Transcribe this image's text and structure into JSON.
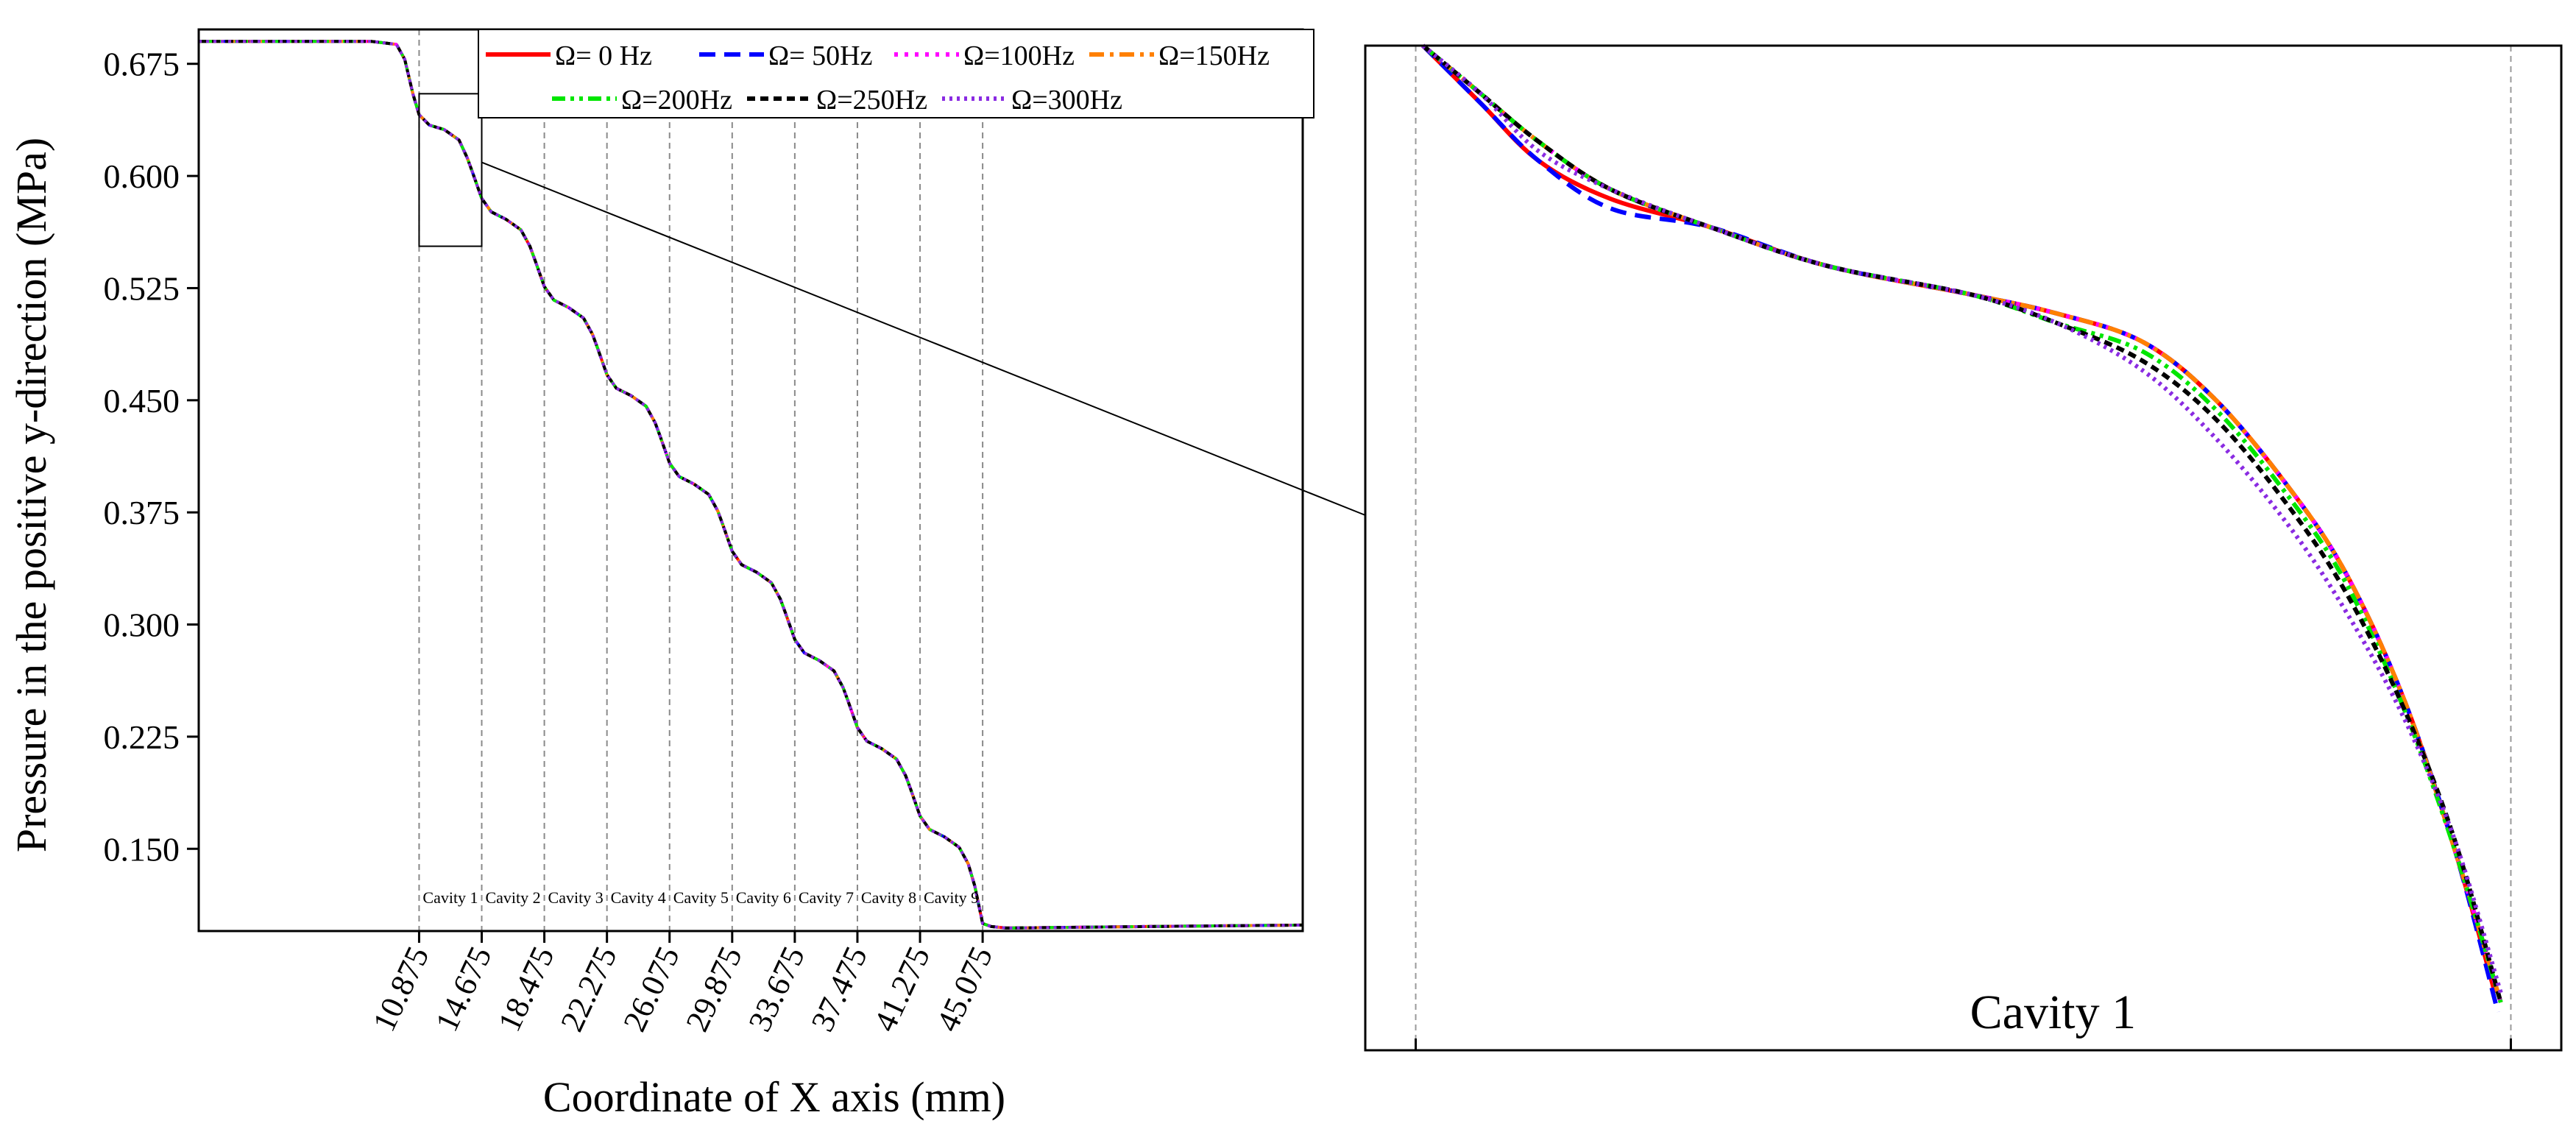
{
  "chart_data": [
    {
      "type": "line",
      "title": "",
      "xlabel": "Coordinate of X axis (mm)",
      "ylabel": "Pressure in the positive y-direction (MPa)",
      "xlim": [
        -2.5,
        64.5
      ],
      "ylim": [
        0.095,
        0.698
      ],
      "yticks": [
        0.15,
        0.225,
        0.3,
        0.375,
        0.45,
        0.525,
        0.6,
        0.675
      ],
      "ytick_labels": [
        "0.150",
        "0.225",
        "0.300",
        "0.375",
        "0.450",
        "0.525",
        "0.600",
        "0.675"
      ],
      "xticks": [
        10.875,
        14.675,
        18.475,
        22.275,
        26.075,
        29.875,
        33.675,
        37.475,
        41.275,
        45.075
      ],
      "xtick_labels": [
        "10.875",
        "14.675",
        "18.475",
        "22.275",
        "26.075",
        "29.875",
        "33.675",
        "37.475",
        "41.275",
        "45.075"
      ],
      "cavity_labels": [
        "Cavity 1",
        "Cavity 2",
        "Cavity 3",
        "Cavity 4",
        "Cavity 5",
        "Cavity 6",
        "Cavity 7",
        "Cavity 8",
        "Cavity 9"
      ],
      "profile": {
        "x": [
          -2.5,
          8.0,
          9.5,
          10.0,
          10.5,
          10.875,
          11.5,
          12.4,
          13.3,
          13.8,
          14.1,
          14.675,
          15.25,
          16.15,
          17.05,
          17.6,
          17.9,
          18.475,
          19.05,
          19.95,
          20.85,
          21.4,
          21.7,
          22.275,
          22.85,
          23.75,
          24.65,
          25.2,
          25.5,
          26.075,
          26.65,
          27.55,
          28.45,
          29.0,
          29.3,
          29.875,
          30.45,
          31.35,
          32.25,
          32.8,
          33.1,
          33.675,
          34.25,
          35.15,
          36.05,
          36.6,
          36.9,
          37.475,
          38.05,
          38.95,
          39.85,
          40.4,
          40.7,
          41.275,
          41.85,
          42.75,
          43.65,
          44.2,
          44.6,
          45.075,
          45.6,
          46.5,
          55.0,
          64.5
        ],
        "y": [
          0.69,
          0.69,
          0.688,
          0.678,
          0.655,
          0.641,
          0.634,
          0.631,
          0.624,
          0.612,
          0.603,
          0.585,
          0.576,
          0.571,
          0.564,
          0.553,
          0.544,
          0.526,
          0.517,
          0.512,
          0.505,
          0.494,
          0.485,
          0.467,
          0.458,
          0.453,
          0.446,
          0.435,
          0.426,
          0.408,
          0.399,
          0.394,
          0.387,
          0.376,
          0.367,
          0.349,
          0.34,
          0.335,
          0.328,
          0.317,
          0.308,
          0.29,
          0.281,
          0.276,
          0.269,
          0.258,
          0.249,
          0.231,
          0.222,
          0.217,
          0.21,
          0.199,
          0.19,
          0.172,
          0.163,
          0.158,
          0.151,
          0.14,
          0.125,
          0.1,
          0.098,
          0.097,
          0.098,
          0.099
        ]
      },
      "series": [
        {
          "name": "Ω=   0 Hz",
          "color": "#ff0000",
          "dash": "solid"
        },
        {
          "name": "Ω=  50Hz",
          "color": "#0000ff",
          "dash": "dash"
        },
        {
          "name": "Ω=100Hz",
          "color": "#ff00ff",
          "dash": "dot"
        },
        {
          "name": "Ω=150Hz",
          "color": "#ff8000",
          "dash": "dashdot"
        },
        {
          "name": "Ω=200Hz",
          "color": "#00e600",
          "dash": "dashdotdot"
        },
        {
          "name": "Ω=250Hz",
          "color": "#000000",
          "dash": "shortdash"
        },
        {
          "name": "Ω=300Hz",
          "color": "#8a2be2",
          "dash": "shortdot"
        }
      ],
      "legend_position": "top-right"
    },
    {
      "type": "line",
      "title": "Cavity 1",
      "xlim": [
        10.7,
        14.85
      ],
      "ylim": [
        0.55,
        0.655
      ],
      "zoom_box": {
        "x": [
          10.875,
          14.675
        ],
        "y": [
          0.553,
          0.655
        ]
      },
      "series": [
        {
          "name": "Ω=   0 Hz",
          "color": "#ff0000",
          "dash": "solid",
          "x": [
            10.9,
            11.1,
            11.3,
            11.55,
            11.9,
            12.3,
            12.8,
            13.1,
            13.4,
            13.65,
            13.9,
            14.1,
            14.3,
            14.48,
            14.62
          ],
          "y": [
            0.655,
            0.649,
            0.643,
            0.639,
            0.636,
            0.632,
            0.629,
            0.627,
            0.624,
            0.618,
            0.609,
            0.6,
            0.587,
            0.571,
            0.556
          ]
        },
        {
          "name": "Ω=  50Hz",
          "color": "#0000ff",
          "dash": "dash",
          "x": [
            10.9,
            11.1,
            11.3,
            11.55,
            11.9,
            12.3,
            12.8,
            13.1,
            13.4,
            13.65,
            13.9,
            14.1,
            14.3,
            14.48,
            14.63
          ],
          "y": [
            0.655,
            0.649,
            0.643,
            0.638,
            0.636,
            0.632,
            0.629,
            0.627,
            0.624,
            0.618,
            0.609,
            0.6,
            0.587,
            0.571,
            0.554
          ]
        },
        {
          "name": "Ω=100Hz",
          "color": "#ff00ff",
          "dash": "dot",
          "x": [
            10.9,
            11.1,
            11.3,
            11.55,
            11.9,
            12.3,
            12.8,
            13.1,
            13.4,
            13.65,
            13.9,
            14.1,
            14.3,
            14.48,
            14.64
          ],
          "y": [
            0.655,
            0.65,
            0.645,
            0.64,
            0.636,
            0.632,
            0.629,
            0.627,
            0.624,
            0.618,
            0.609,
            0.6,
            0.587,
            0.571,
            0.555
          ]
        },
        {
          "name": "Ω=150Hz",
          "color": "#ff8000",
          "dash": "dashdot",
          "x": [
            10.9,
            11.1,
            11.3,
            11.55,
            11.9,
            12.3,
            12.8,
            13.1,
            13.4,
            13.65,
            13.9,
            14.1,
            14.3,
            14.48,
            14.64
          ],
          "y": [
            0.655,
            0.65,
            0.645,
            0.64,
            0.636,
            0.632,
            0.629,
            0.627,
            0.624,
            0.618,
            0.609,
            0.6,
            0.587,
            0.571,
            0.555
          ]
        },
        {
          "name": "Ω=200Hz",
          "color": "#00e600",
          "dash": "dashdotdot",
          "x": [
            10.9,
            11.1,
            11.3,
            11.55,
            11.9,
            12.3,
            12.8,
            13.1,
            13.4,
            13.65,
            13.9,
            14.1,
            14.3,
            14.48,
            14.64
          ],
          "y": [
            0.655,
            0.65,
            0.645,
            0.64,
            0.636,
            0.632,
            0.629,
            0.626,
            0.623,
            0.617,
            0.608,
            0.599,
            0.586,
            0.571,
            0.555
          ]
        },
        {
          "name": "Ω=250Hz",
          "color": "#000000",
          "dash": "shortdash",
          "x": [
            10.9,
            11.1,
            11.3,
            11.55,
            11.9,
            12.3,
            12.8,
            13.1,
            13.4,
            13.65,
            13.9,
            14.1,
            14.3,
            14.48,
            14.64
          ],
          "y": [
            0.655,
            0.65,
            0.645,
            0.64,
            0.636,
            0.632,
            0.629,
            0.626,
            0.622,
            0.616,
            0.607,
            0.598,
            0.586,
            0.572,
            0.555
          ]
        },
        {
          "name": "Ω=300Hz",
          "color": "#8a2be2",
          "dash": "shortdot",
          "x": [
            10.9,
            11.1,
            11.3,
            11.55,
            11.9,
            12.3,
            12.8,
            13.1,
            13.4,
            13.65,
            13.9,
            14.1,
            14.3,
            14.48,
            14.64
          ],
          "y": [
            0.655,
            0.65,
            0.644,
            0.64,
            0.636,
            0.632,
            0.629,
            0.626,
            0.621,
            0.614,
            0.605,
            0.596,
            0.585,
            0.572,
            0.556
          ]
        }
      ]
    }
  ]
}
